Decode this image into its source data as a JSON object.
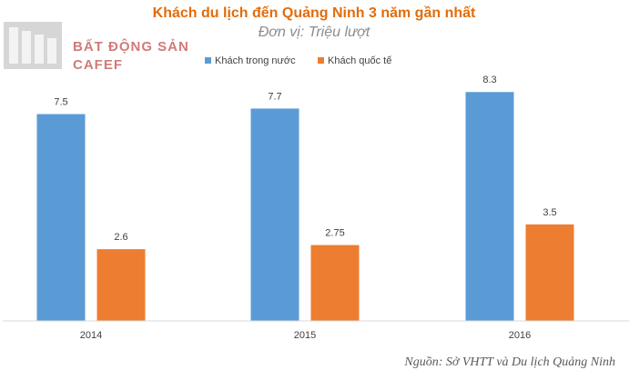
{
  "chart_data": {
    "type": "bar",
    "title": "Khách du lịch đến Quảng Ninh 3 năm gần nhất",
    "subtitle": "Đơn vị: Triệu lượt",
    "categories": [
      "2014",
      "2015",
      "2016"
    ],
    "series": [
      {
        "name": "Khách trong nước",
        "values": [
          7.5,
          7.7,
          8.3
        ],
        "labels": [
          "7.5",
          "7.7",
          "8.3"
        ],
        "color": "#5B9BD5"
      },
      {
        "name": "Khách quốc tế",
        "values": [
          2.6,
          2.75,
          3.5
        ],
        "labels": [
          "2.6",
          "2.75",
          "3.5"
        ],
        "color": "#ED7D31"
      }
    ],
    "ylim": [
      0,
      9
    ],
    "xlabel": "",
    "ylabel": "",
    "grid": false,
    "legend_position": "top"
  },
  "logo": {
    "line1": "BẤT ĐỘNG SẢN",
    "line2": "CAFEF",
    "color": "#c0504d"
  },
  "source": "Nguồn: Sở VHTT và Du lịch Quảng Ninh",
  "colors": {
    "title": "#E36C0A",
    "subtitle": "#8c8c8c",
    "axis": "#d9d9d9"
  }
}
